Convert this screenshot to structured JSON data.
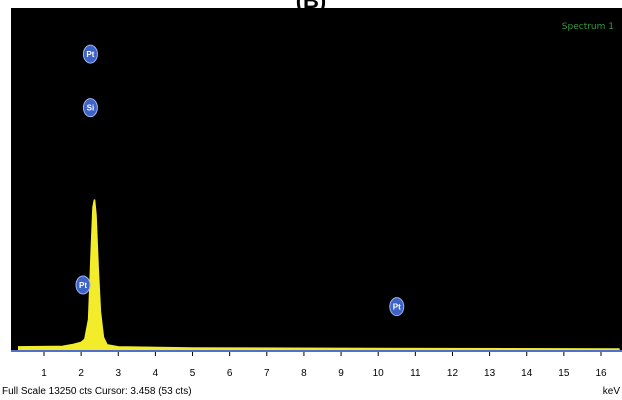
{
  "panel_label": "(B)",
  "chart_data": {
    "type": "line",
    "title": "",
    "xlabel": "keV",
    "ylabel": "",
    "xlim": [
      0.3,
      16.5
    ],
    "ylim": [
      0,
      13250
    ],
    "xticks": [
      1,
      2,
      3,
      4,
      5,
      6,
      7,
      8,
      9,
      10,
      11,
      12,
      13,
      14,
      15,
      16
    ],
    "grid": false,
    "spectrum_label": "Spectrum 1",
    "series": [
      {
        "color": "#f2ec2a",
        "x": [
          0.3,
          1.5,
          1.8,
          2.0,
          2.1,
          2.2,
          2.28,
          2.32,
          2.36,
          2.4,
          2.46,
          2.52,
          2.6,
          2.7,
          3.0,
          5.0,
          10.0,
          16.5
        ],
        "y": [
          120,
          140,
          220,
          300,
          420,
          1200,
          4200,
          5600,
          5900,
          5300,
          3200,
          1500,
          500,
          200,
          120,
          80,
          60,
          40
        ]
      }
    ],
    "peak_labels": [
      {
        "text": "Pt",
        "x": 2.05,
        "y": 2550.0
      },
      {
        "text": "Si",
        "x": 2.25,
        "y": 9500.0
      },
      {
        "text": "Pt",
        "x": 2.25,
        "y": 11600.0
      },
      {
        "text": "Pt",
        "x": 10.5,
        "y": 1700.0
      }
    ],
    "full_scale_text": "Full Scale 13250 cts Cursor: 3.458 (53 cts)"
  },
  "colors": {
    "plot_bg": "#000000",
    "trace": "#f2ec2a",
    "badge": "#3e63c8",
    "axis": "#4f6fd1"
  }
}
